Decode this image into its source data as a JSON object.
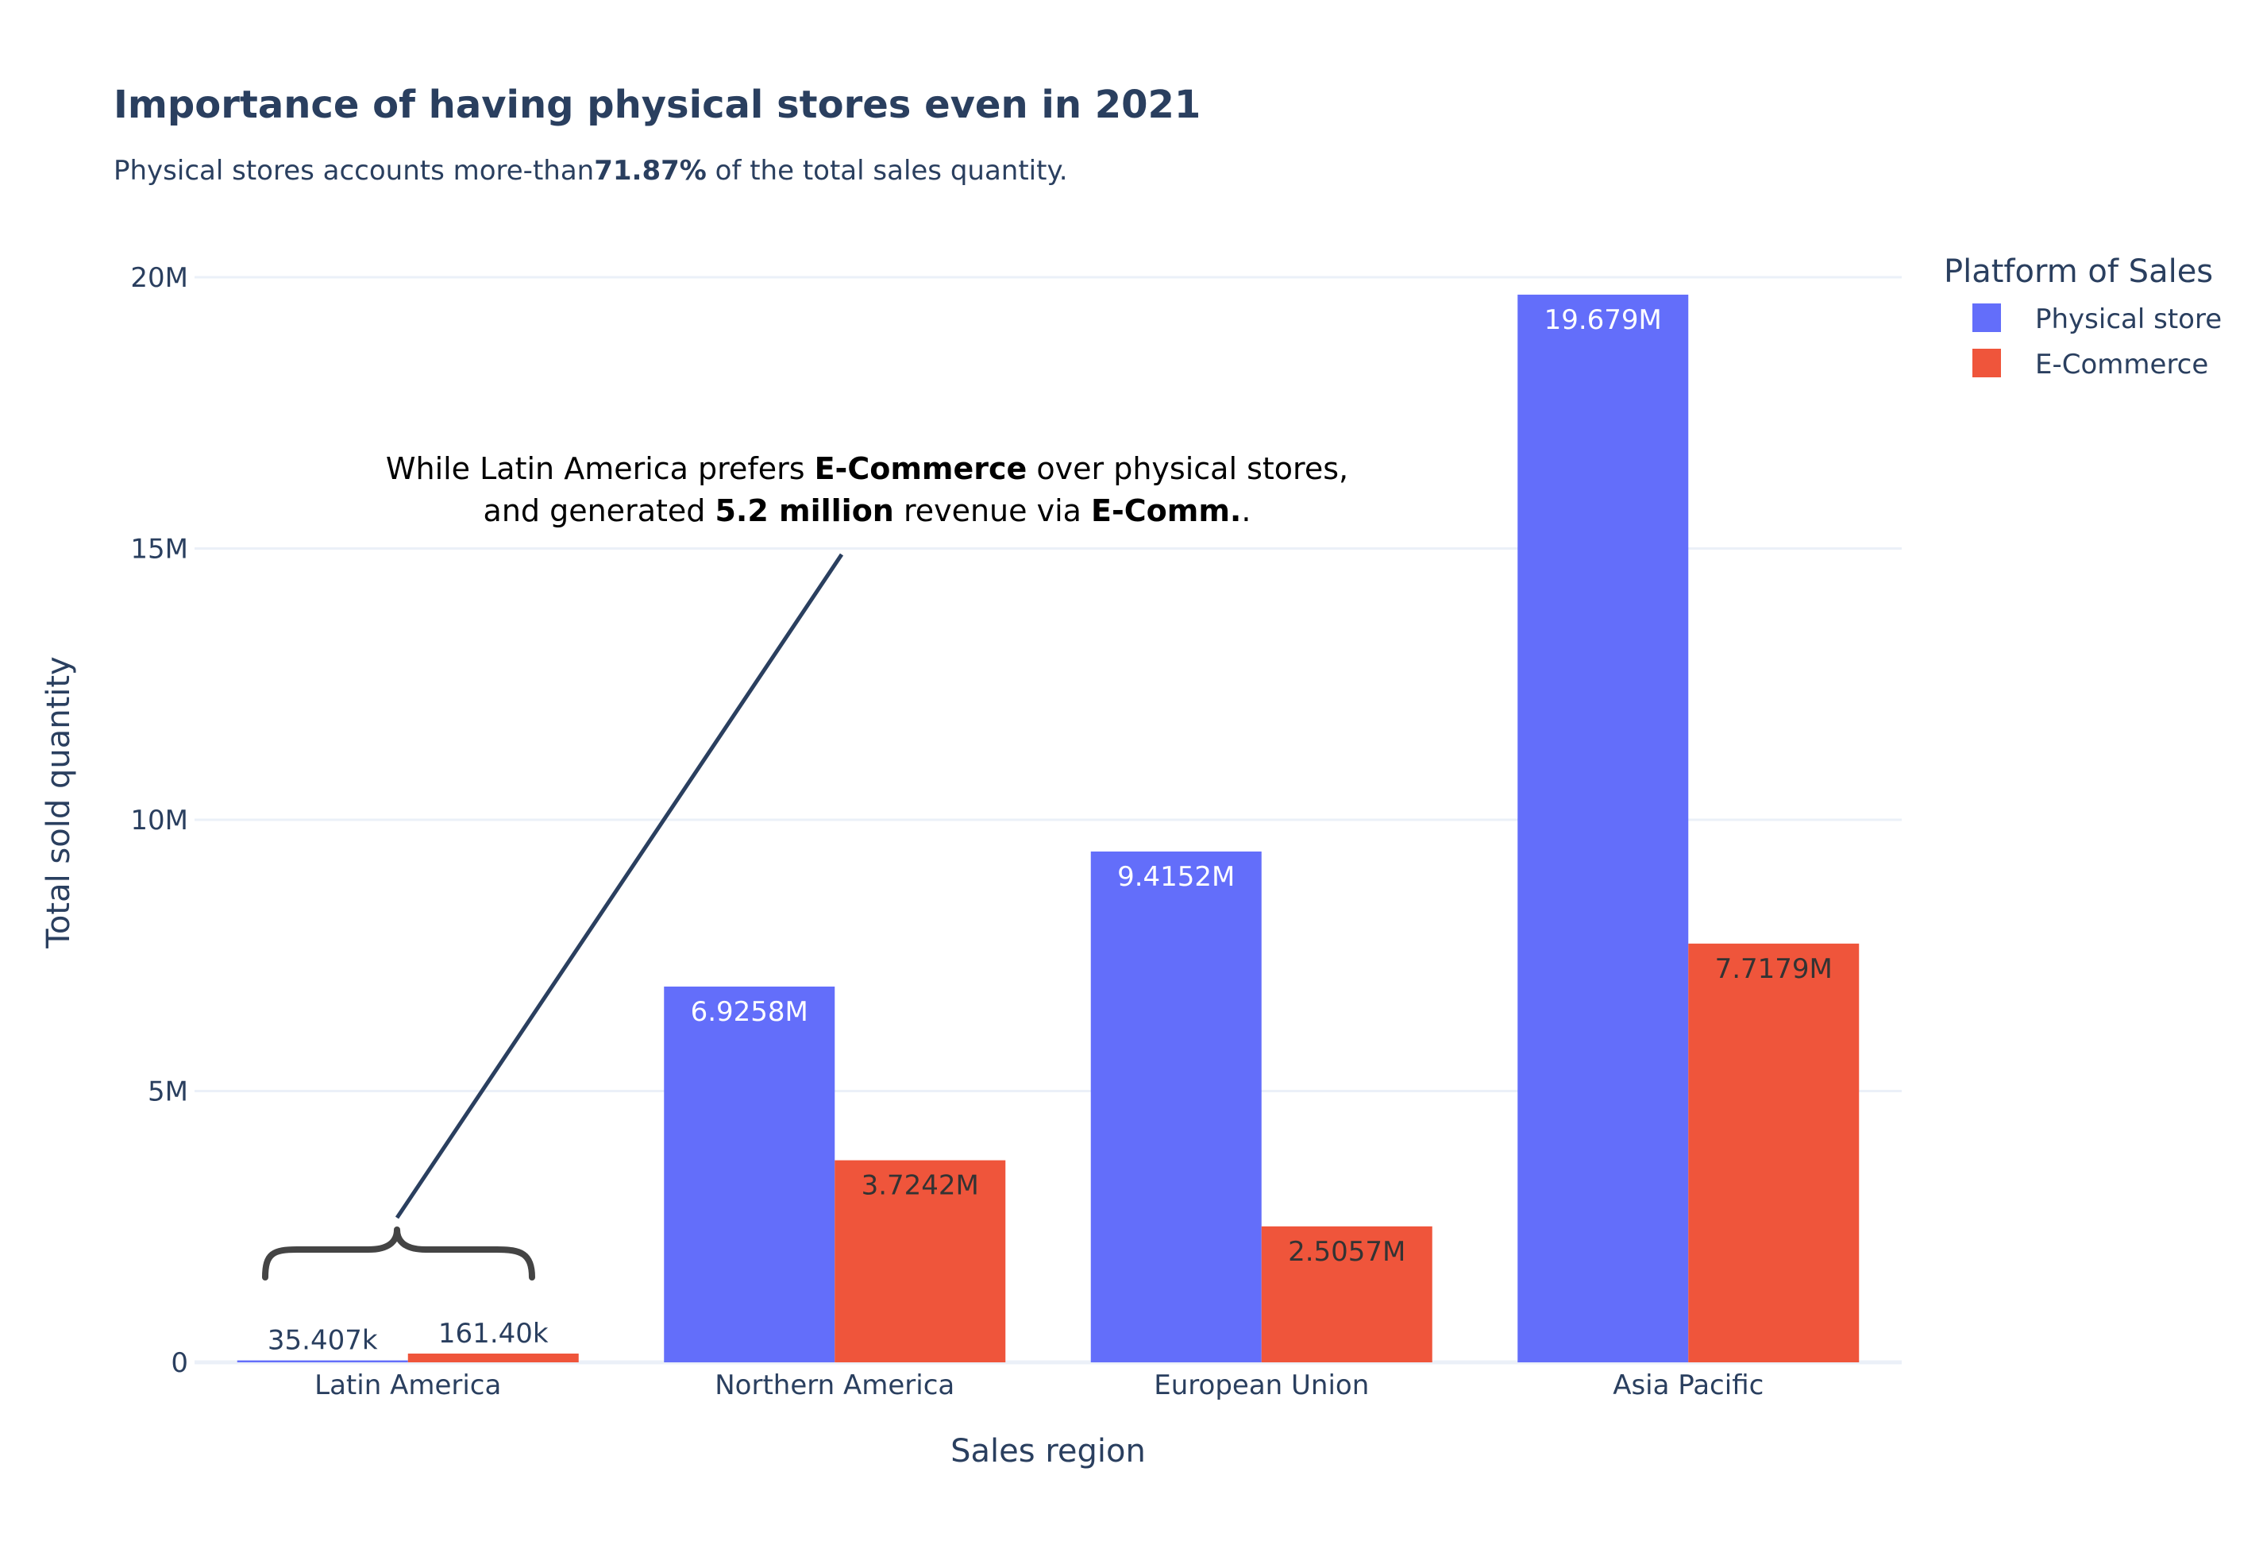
{
  "chart_data": {
    "type": "bar",
    "title": "Importance of having physical stores even in 2021",
    "subtitle": {
      "before": "Physical stores accounts more-than",
      "bold": "71.87%",
      "after": " of the total sales quantity."
    },
    "xlabel": "Sales region",
    "ylabel": "Total sold quantity",
    "categories": [
      "Latin America",
      "Northern America",
      "European Union",
      "Asia Pacific"
    ],
    "ylim": [
      0,
      21000000
    ],
    "yticks": [
      {
        "value": 0,
        "label": "0"
      },
      {
        "value": 5000000,
        "label": "5M"
      },
      {
        "value": 10000000,
        "label": "10M"
      },
      {
        "value": 15000000,
        "label": "15M"
      },
      {
        "value": 20000000,
        "label": "20M"
      }
    ],
    "grid": true,
    "legend": {
      "title": "Platform of Sales",
      "placement": "top-right"
    },
    "series": [
      {
        "name": "Physical store",
        "color": "#636efa",
        "values": [
          35407,
          6925800,
          9415200,
          19679000
        ],
        "labels": [
          "35.407k",
          "6.9258M",
          "9.4152M",
          "19.679M"
        ]
      },
      {
        "name": "E-Commerce",
        "color": "#ef553b",
        "values": [
          161400,
          3724200,
          2505700,
          7717900
        ],
        "labels": [
          "161.40k",
          "3.7242M",
          "2.5057M",
          "7.7179M"
        ]
      }
    ],
    "annotation": {
      "line1": [
        {
          "text": "While Latin America prefers ",
          "bold": false
        },
        {
          "text": "E-Commerce",
          "bold": true
        },
        {
          "text": " over physical stores,",
          "bold": false
        }
      ],
      "line2": [
        {
          "text": "and generated ",
          "bold": false
        },
        {
          "text": "5.2 million",
          "bold": true
        },
        {
          "text": " revenue via ",
          "bold": false
        },
        {
          "text": "E-Comm.",
          "bold": true
        },
        {
          "text": ".",
          "bold": false
        }
      ],
      "brace": "}"
    }
  }
}
